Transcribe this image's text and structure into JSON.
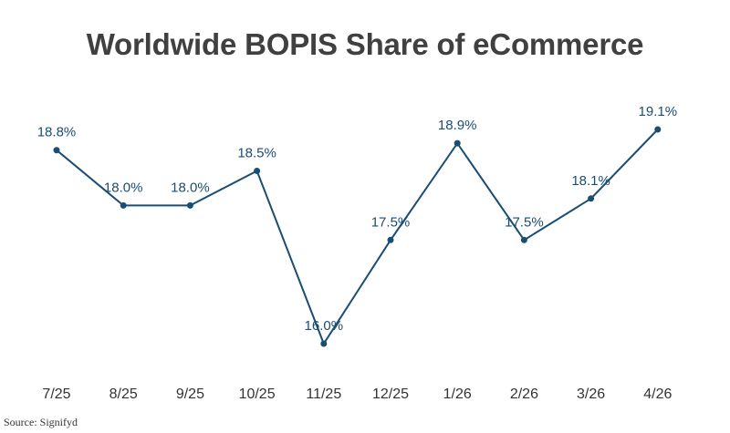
{
  "title": "Worldwide BOPIS Share of eCommerce",
  "source": "Source: Signifyd",
  "colors": {
    "line": "#1a4d72",
    "label": "#1a4d72",
    "tick": "#333333",
    "title": "#404040"
  },
  "chart_data": {
    "type": "line",
    "title": "Worldwide BOPIS Share of eCommerce",
    "xlabel": "",
    "ylabel": "",
    "grid": false,
    "legend": "none",
    "ylim": [
      15.5,
      19.6
    ],
    "categories": [
      "7/25",
      "8/25",
      "9/25",
      "10/25",
      "11/25",
      "12/25",
      "1/26",
      "2/26",
      "3/26",
      "4/26"
    ],
    "series": [
      {
        "values": [
          18.8,
          18.0,
          18.0,
          18.5,
          16.0,
          17.5,
          18.9,
          17.5,
          18.1,
          19.1
        ],
        "labels": [
          "18.8%",
          "18.0%",
          "18.0%",
          "18.5%",
          "16.0%",
          "17.5%",
          "18.9%",
          "17.5%",
          "18.1%",
          "19.1%"
        ]
      }
    ]
  }
}
